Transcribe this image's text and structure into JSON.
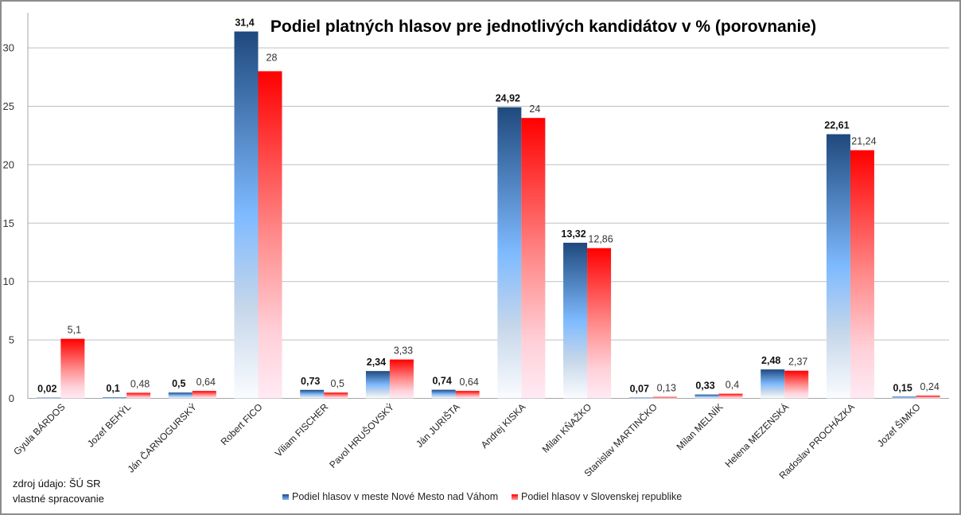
{
  "chart_data": {
    "type": "bar",
    "title": "Podiel platných hlasov pre jednotlivých kandidátov v % (porovnanie)",
    "xlabel": "",
    "ylabel": "",
    "ylim": [
      0,
      32
    ],
    "yticks": [
      0,
      5,
      10,
      15,
      20,
      25,
      30
    ],
    "ytick_labels": [
      "0",
      "5",
      "10",
      "15",
      "20",
      "25",
      "30"
    ],
    "grid": true,
    "legend_position": "bottom",
    "categories": [
      "Gyula BÁRDOS",
      "Jozef BEHÝL",
      "Ján ČARNOGURSKÝ",
      "Robert FICO",
      "Viliam FISCHER",
      "Pavol HRUŠOVSKÝ",
      "Ján JURIŠTA",
      "Andrej KISKA",
      "Milan KŇAŽKO",
      "Stanislav MARTINČKO",
      "Milan MELNÍK",
      "Helena MEZENSKÁ",
      "Radoslav PROCHÁZKA",
      "Jozef ŠIMKO"
    ],
    "series": [
      {
        "name": "Podiel hlasov v meste Nové Mesto nad Váhom",
        "color": "#1F497D",
        "values": [
          0.02,
          0.1,
          0.5,
          31.4,
          0.73,
          2.34,
          0.74,
          24.92,
          13.32,
          0.07,
          0.33,
          2.48,
          22.61,
          0.15
        ],
        "labels": [
          "0,02",
          "0,1",
          "0,5",
          "31,4",
          "0,73",
          "2,34",
          "0,74",
          "24,92",
          "13,32",
          "0,07",
          "0,33",
          "2,48",
          "22,61",
          "0,15"
        ]
      },
      {
        "name": "Podiel hlasov v Slovenskej republike",
        "color": "#FF0000",
        "values": [
          5.1,
          0.48,
          0.64,
          28,
          0.5,
          3.33,
          0.64,
          24,
          12.86,
          0.13,
          0.4,
          2.37,
          21.24,
          0.24
        ],
        "labels": [
          "5,1",
          "0,48",
          "0,64",
          "28",
          "0,5",
          "3,33",
          "0,64",
          "24",
          "12,86",
          "0,13",
          "0,4",
          "2,37",
          "21,24",
          "0,24"
        ]
      }
    ]
  },
  "notes": {
    "source": "zdroj údajo: ŠÚ SR",
    "processing": "vlastné spracovanie"
  }
}
